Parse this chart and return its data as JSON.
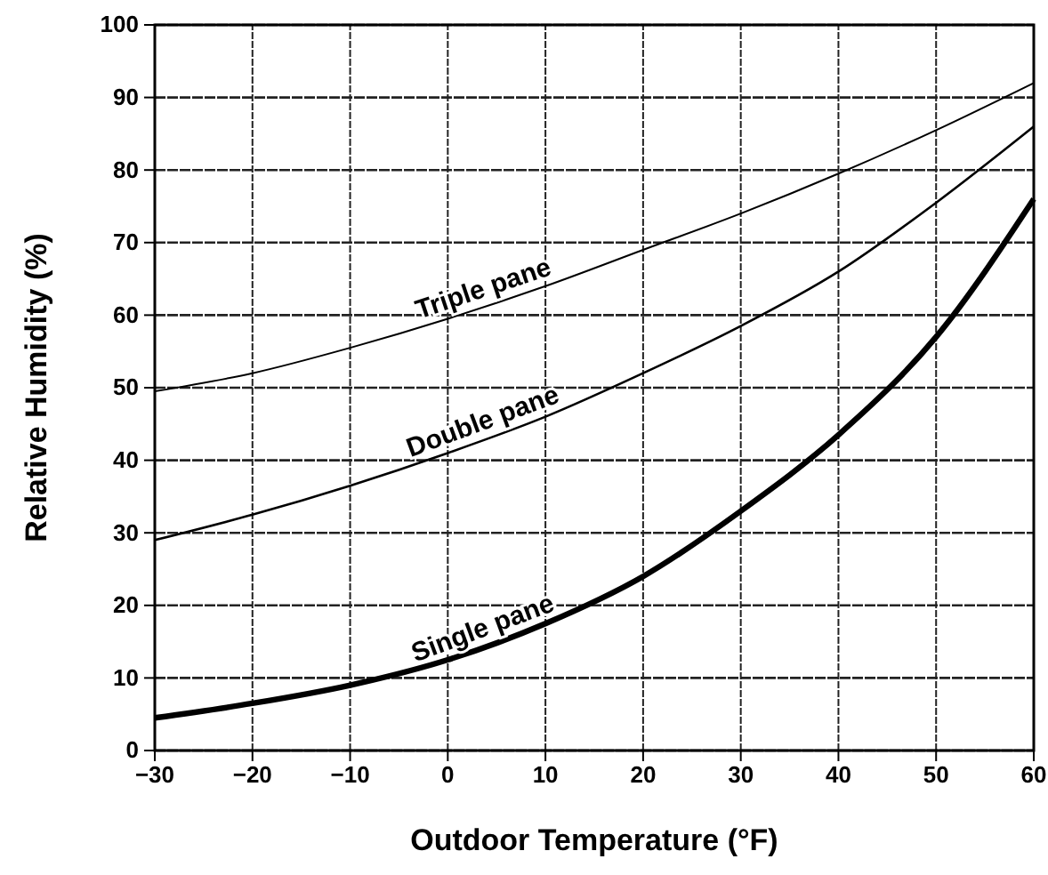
{
  "chart_data": {
    "type": "line",
    "xlabel": "Outdoor Temperature (°F)",
    "ylabel": "Relative Humidity (%)",
    "x": [
      -30,
      -20,
      -10,
      0,
      10,
      20,
      30,
      40,
      50,
      60
    ],
    "series": [
      {
        "name": "Triple pane",
        "color": "#000000",
        "values": [
          49.5,
          52,
          55.5,
          59.5,
          64,
          69,
          74,
          79.5,
          85.5,
          92
        ]
      },
      {
        "name": "Double pane",
        "color": "#000000",
        "values": [
          29,
          32.5,
          36.5,
          41,
          46,
          52,
          58.5,
          66,
          75.5,
          86
        ]
      },
      {
        "name": "Single pane",
        "color": "#000000",
        "values": [
          4.5,
          6.5,
          9,
          12.5,
          17.5,
          24,
          33,
          43.5,
          57,
          76
        ]
      }
    ],
    "xlim": [
      -30,
      60
    ],
    "xticks": [
      {
        "value": -30,
        "label": "−30"
      },
      {
        "value": -20,
        "label": "−20"
      },
      {
        "value": -10,
        "label": "−10"
      },
      0,
      10,
      20,
      30,
      40,
      50,
      60
    ],
    "ylim": [
      0,
      100
    ],
    "yticks": [
      0,
      10,
      20,
      30,
      40,
      50,
      60,
      70,
      80,
      90,
      100
    ],
    "grid": true,
    "marker": "none",
    "line_style": "solid"
  }
}
